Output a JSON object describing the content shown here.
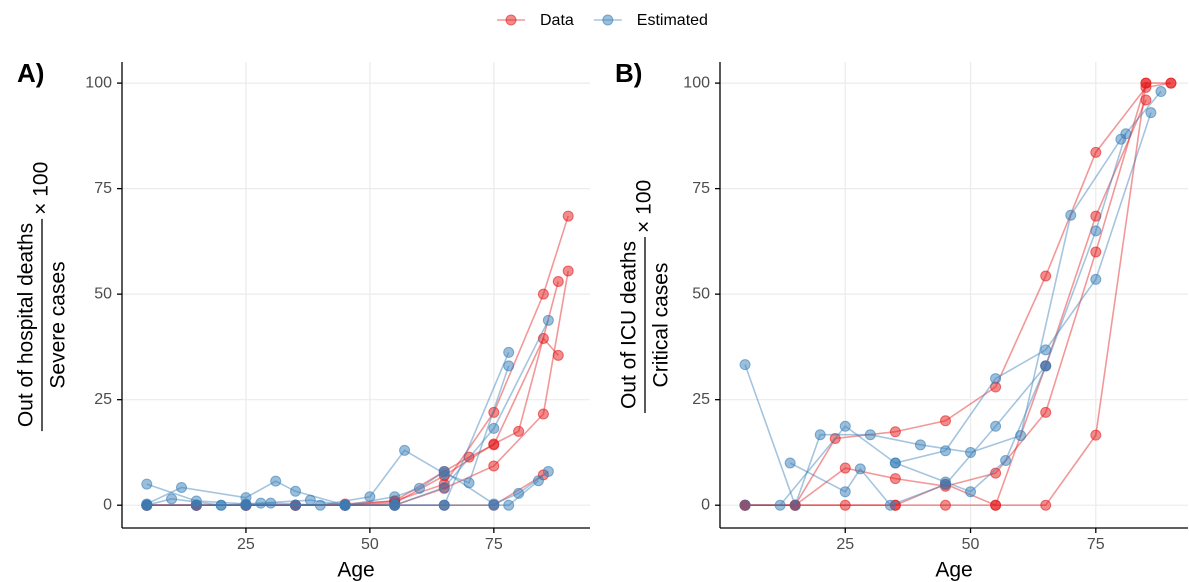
{
  "chart_data": [
    {
      "type": "line",
      "panel_label": "A)",
      "xlabel": "Age",
      "ylabel": {
        "numerator": "Out of hospital deaths",
        "denominator": "Severe cases",
        "multiplier": "× 100"
      },
      "xlim": [
        0,
        94.4
      ],
      "ylim": [
        -5.4,
        105
      ],
      "xticks": [
        25,
        50,
        75
      ],
      "yticks": [
        0,
        25,
        50,
        75,
        100
      ],
      "grid": true,
      "series": [
        {
          "name": "Data",
          "color": "#e41a1c",
          "x": [
            5,
            15,
            25,
            35,
            45,
            55,
            65,
            75,
            85,
            90
          ],
          "values": [
            0,
            0,
            0,
            0,
            0.3,
            1,
            5,
            22,
            50,
            68.5
          ]
        },
        {
          "name": "Data",
          "color": "#e41a1c",
          "x": [
            5,
            15,
            25,
            35,
            45,
            55,
            65,
            75,
            80,
            88
          ],
          "values": [
            0,
            0,
            0,
            0,
            0,
            0.5,
            7,
            14.5,
            17.5,
            53
          ]
        },
        {
          "name": "Data",
          "color": "#e41a1c",
          "x": [
            5,
            15,
            25,
            35,
            45,
            55,
            65,
            75,
            85,
            90
          ],
          "values": [
            0,
            0,
            0,
            0,
            0,
            0,
            4,
            9.3,
            21.6,
            55.5
          ]
        },
        {
          "name": "Data",
          "color": "#e41a1c",
          "x": [
            5,
            15,
            25,
            35,
            45,
            55,
            65,
            70,
            75,
            85,
            88
          ],
          "values": [
            0,
            0,
            0,
            0,
            0,
            1,
            8,
            11.4,
            14.3,
            39.5,
            35.5
          ]
        },
        {
          "name": "Data",
          "color": "#e41a1c",
          "x": [
            5,
            15,
            25,
            35,
            45,
            55,
            65,
            75,
            85
          ],
          "values": [
            0,
            0,
            0,
            0,
            0,
            0,
            0,
            0,
            7.2
          ]
        },
        {
          "name": "Estimated",
          "color": "#377eb8",
          "x": [
            5,
            15,
            25,
            35,
            45,
            55,
            65,
            78
          ],
          "values": [
            5,
            1,
            0.3,
            0,
            0,
            0,
            0,
            36.2
          ]
        },
        {
          "name": "Estimated",
          "color": "#377eb8",
          "x": [
            5,
            12,
            25,
            31,
            35,
            45,
            55,
            65,
            75,
            86
          ],
          "values": [
            0.3,
            4.2,
            1.8,
            5.7,
            3.3,
            0,
            0,
            4.2,
            18.2,
            43.8
          ]
        },
        {
          "name": "Estimated",
          "color": "#377eb8",
          "x": [
            5,
            15,
            20,
            25,
            30,
            40,
            50,
            57,
            65,
            70,
            78
          ],
          "values": [
            0,
            0,
            0,
            0,
            0.5,
            0,
            2,
            13,
            7.5,
            5.3,
            33
          ]
        },
        {
          "name": "Estimated",
          "color": "#377eb8",
          "x": [
            5,
            10,
            20,
            28,
            38,
            45,
            55,
            60,
            65,
            75,
            80,
            86
          ],
          "values": [
            0,
            1.5,
            0,
            0.5,
            1.2,
            0,
            2,
            4,
            8,
            0.3,
            2.8,
            8
          ]
        },
        {
          "name": "Estimated",
          "color": "#377eb8",
          "x": [
            5,
            15,
            25,
            35,
            45,
            55,
            65,
            75,
            78,
            84
          ],
          "values": [
            0,
            0,
            0,
            0,
            0,
            0,
            0,
            0,
            0,
            5.8
          ]
        }
      ]
    },
    {
      "type": "line",
      "panel_label": "B)",
      "xlabel": "Age",
      "ylabel": {
        "numerator": "Out of ICU deaths",
        "denominator": "Critical cases",
        "multiplier": "× 100"
      },
      "xlim": [
        0,
        93.4
      ],
      "ylim": [
        -5.4,
        105
      ],
      "xticks": [
        25,
        50,
        75
      ],
      "yticks": [
        0,
        25,
        50,
        75,
        100
      ],
      "grid": true,
      "series": [
        {
          "name": "Data",
          "color": "#e41a1c",
          "x": [
            5,
            15,
            25,
            35,
            45,
            55,
            65,
            75,
            85,
            90
          ],
          "values": [
            0,
            0,
            8.8,
            6.3,
            4.5,
            7.6,
            22,
            60,
            100,
            100
          ]
        },
        {
          "name": "Data",
          "color": "#e41a1c",
          "x": [
            5,
            15,
            25,
            35,
            45,
            55,
            65,
            75,
            85
          ],
          "values": [
            0,
            0,
            0,
            0,
            0,
            0,
            0,
            16.6,
            100
          ]
        },
        {
          "name": "Data",
          "color": "#e41a1c",
          "x": [
            5,
            15,
            23,
            35,
            45,
            55,
            65,
            75,
            85,
            90
          ],
          "values": [
            0,
            0,
            15.8,
            17.4,
            20,
            28,
            54.3,
            83.6,
            99,
            100
          ]
        },
        {
          "name": "Data",
          "color": "#e41a1c",
          "x": [
            5,
            15,
            35,
            45,
            55,
            65,
            75,
            85
          ],
          "values": [
            0,
            0,
            0,
            5,
            0,
            33,
            68.5,
            96
          ]
        },
        {
          "name": "Estimated",
          "color": "#377eb8",
          "x": [
            5,
            15,
            20,
            30,
            40,
            50,
            60,
            70,
            80,
            88
          ],
          "values": [
            33.3,
            0,
            16.7,
            16.7,
            14.3,
            12.5,
            16.5,
            68.7,
            86.7,
            98
          ]
        },
        {
          "name": "Estimated",
          "color": "#377eb8",
          "x": [
            5,
            12,
            25,
            35,
            45,
            55,
            65,
            75,
            86
          ],
          "values": [
            0,
            0,
            18.7,
            10,
            12.9,
            30,
            36.8,
            53.5,
            93
          ]
        },
        {
          "name": "Estimated",
          "color": "#377eb8",
          "x": [
            14,
            25,
            28,
            34,
            45,
            55,
            65,
            75,
            81
          ],
          "values": [
            10,
            3.2,
            8.6,
            0,
            4.9,
            18.7,
            33,
            65,
            88
          ]
        },
        {
          "name": "Estimated",
          "color": "#377eb8",
          "x": [
            35,
            45,
            50,
            57,
            65
          ],
          "values": [
            10,
            5.5,
            3.2,
            10.6,
            33
          ]
        }
      ]
    }
  ]
}
